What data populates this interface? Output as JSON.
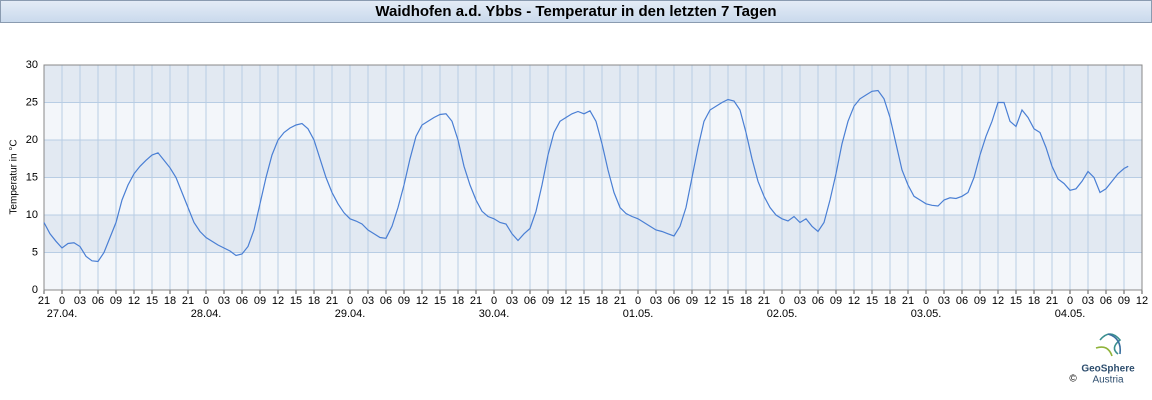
{
  "chart_data": {
    "type": "line",
    "title": "Waidhofen a.d. Ybbs - Temperatur in den letzten 7 Tagen",
    "y_label": "Temperatur in °C",
    "color": "#4a7fd4",
    "grid": true,
    "bands": true,
    "xlim": [
      -3,
      180
    ],
    "ylim": [
      0,
      30
    ],
    "yticks": [
      0,
      5,
      10,
      15,
      20,
      25,
      30
    ],
    "xticks": [
      {
        "value": -3,
        "label": "21"
      },
      0,
      {
        "value": 3,
        "label": "03"
      },
      {
        "value": 6,
        "label": "06"
      },
      {
        "value": 9,
        "label": "09"
      },
      12,
      15,
      18,
      21,
      {
        "value": 24,
        "label": "0"
      },
      {
        "value": 27,
        "label": "03"
      },
      {
        "value": 30,
        "label": "06"
      },
      {
        "value": 33,
        "label": "09"
      },
      {
        "value": 36,
        "label": "12"
      },
      {
        "value": 39,
        "label": "15"
      },
      {
        "value": 42,
        "label": "18"
      },
      {
        "value": 45,
        "label": "21"
      },
      {
        "value": 48,
        "label": "0"
      },
      {
        "value": 51,
        "label": "03"
      },
      {
        "value": 54,
        "label": "06"
      },
      {
        "value": 57,
        "label": "09"
      },
      {
        "value": 60,
        "label": "12"
      },
      {
        "value": 63,
        "label": "15"
      },
      {
        "value": 66,
        "label": "18"
      },
      {
        "value": 69,
        "label": "21"
      },
      {
        "value": 72,
        "label": "0"
      },
      {
        "value": 75,
        "label": "03"
      },
      {
        "value": 78,
        "label": "06"
      },
      {
        "value": 81,
        "label": "09"
      },
      {
        "value": 84,
        "label": "12"
      },
      {
        "value": 87,
        "label": "15"
      },
      {
        "value": 90,
        "label": "18"
      },
      {
        "value": 93,
        "label": "21"
      },
      {
        "value": 96,
        "label": "0"
      },
      {
        "value": 99,
        "label": "03"
      },
      {
        "value": 102,
        "label": "06"
      },
      {
        "value": 105,
        "label": "09"
      },
      {
        "value": 108,
        "label": "12"
      },
      {
        "value": 111,
        "label": "15"
      },
      {
        "value": 114,
        "label": "18"
      },
      {
        "value": 117,
        "label": "21"
      },
      {
        "value": 120,
        "label": "0"
      },
      {
        "value": 123,
        "label": "03"
      },
      {
        "value": 126,
        "label": "06"
      },
      {
        "value": 129,
        "label": "09"
      },
      {
        "value": 132,
        "label": "12"
      },
      {
        "value": 135,
        "label": "15"
      },
      {
        "value": 138,
        "label": "18"
      },
      {
        "value": 141,
        "label": "21"
      },
      {
        "value": 144,
        "label": "0"
      },
      {
        "value": 147,
        "label": "03"
      },
      {
        "value": 150,
        "label": "06"
      },
      {
        "value": 153,
        "label": "09"
      },
      {
        "value": 156,
        "label": "12"
      },
      {
        "value": 159,
        "label": "15"
      },
      {
        "value": 162,
        "label": "18"
      },
      {
        "value": 165,
        "label": "21"
      },
      {
        "value": 168,
        "label": "0"
      },
      {
        "value": 171,
        "label": "03"
      },
      {
        "value": 174,
        "label": "06"
      },
      {
        "value": 177,
        "label": "09"
      },
      {
        "value": 180,
        "label": "12"
      }
    ],
    "date_labels": [
      {
        "value": 0,
        "label": "27.04."
      },
      {
        "value": 24,
        "label": "28.04."
      },
      {
        "value": 48,
        "label": "29.04."
      },
      {
        "value": 72,
        "label": "30.04."
      },
      {
        "value": 96,
        "label": "01.05."
      },
      {
        "value": 120,
        "label": "02.05."
      },
      {
        "value": 144,
        "label": "03.05."
      },
      {
        "value": 168,
        "label": "04.05."
      }
    ],
    "x": [
      -3,
      -2,
      -1,
      0,
      1,
      2,
      3,
      4,
      5,
      6,
      7,
      8,
      9,
      10,
      11,
      12,
      13,
      14,
      15,
      16,
      17,
      18,
      19,
      20,
      21,
      22,
      23,
      24,
      26,
      28,
      29,
      30,
      31,
      32,
      33,
      34,
      35,
      36,
      37,
      38,
      39,
      40,
      41,
      42,
      43,
      44,
      45,
      46,
      47,
      48,
      49,
      50,
      51,
      52,
      53,
      54,
      55,
      56,
      57,
      58,
      59,
      60,
      61,
      62,
      63,
      64,
      65,
      66,
      67,
      68,
      69,
      70,
      71,
      72,
      73,
      74,
      75,
      76,
      77,
      78,
      79,
      80,
      81,
      82,
      83,
      84,
      85,
      86,
      87,
      88,
      89,
      90,
      91,
      92,
      93,
      94,
      95,
      96,
      97,
      98,
      99,
      100,
      101,
      102,
      103,
      104,
      105,
      106,
      107,
      108,
      109,
      110,
      111,
      112,
      113,
      114,
      115,
      116,
      117,
      118,
      119,
      120,
      121,
      122,
      123,
      124,
      125,
      126,
      127,
      128,
      129,
      130,
      131,
      132,
      133,
      134,
      135,
      136,
      137,
      138,
      139,
      140,
      141,
      142,
      143,
      144,
      145,
      146,
      147,
      148,
      149,
      150,
      151,
      152,
      153,
      154,
      155,
      156,
      157,
      158,
      159,
      160,
      161,
      162,
      163,
      164,
      165,
      166,
      167,
      168,
      169,
      170,
      171,
      172,
      173,
      174,
      175,
      176,
      177,
      177.7
    ],
    "values": [
      9,
      7.5,
      6.5,
      5.6,
      6.2,
      6.3,
      5.8,
      4.5,
      3.9,
      3.8,
      5,
      7,
      9,
      12,
      14,
      15.5,
      16.5,
      17.3,
      18,
      18.3,
      17.3,
      16.3,
      15,
      13,
      11,
      9,
      7.8,
      7,
      6,
      5.2,
      4.6,
      4.8,
      5.8,
      8,
      11.5,
      15,
      18,
      20,
      21,
      21.6,
      22,
      22.2,
      21.5,
      20,
      17.5,
      15,
      13,
      11.5,
      10.3,
      9.5,
      9.2,
      8.8,
      8,
      7.5,
      7,
      6.9,
      8.5,
      11,
      14,
      17.5,
      20.5,
      22,
      22.5,
      23,
      23.4,
      23.5,
      22.5,
      20,
      16.5,
      14,
      12,
      10.5,
      9.8,
      9.5,
      9,
      8.8,
      7.5,
      6.6,
      7.5,
      8.2,
      10.5,
      14,
      18,
      21,
      22.5,
      23,
      23.5,
      23.8,
      23.5,
      23.9,
      22.5,
      19.5,
      16,
      13,
      11,
      10.2,
      9.8,
      9.5,
      9,
      8.5,
      8,
      7.8,
      7.5,
      7.2,
      8.5,
      11,
      15,
      19,
      22.5,
      24,
      24.5,
      25,
      25.4,
      25.2,
      24,
      21,
      17.5,
      14.5,
      12.5,
      11,
      10,
      9.5,
      9.2,
      9.8,
      9,
      9.5,
      8.5,
      7.8,
      9,
      12,
      15.5,
      19.5,
      22.5,
      24.5,
      25.5,
      26,
      26.5,
      26.6,
      25.5,
      23,
      19.5,
      16,
      14,
      12.5,
      12,
      11.5,
      11.3,
      11.2,
      12,
      12.3,
      12.2,
      12.5,
      13,
      15,
      18,
      20.5,
      22.5,
      25,
      25,
      22.5,
      21.8,
      24,
      23,
      21.5,
      21,
      19,
      16.5,
      14.8,
      14.2,
      13.3,
      13.5,
      14.5,
      15.8,
      15,
      13,
      13.5,
      14.5,
      15.5,
      16.2,
      16.5
    ]
  },
  "footer": {
    "logo_name": "GeoSphere",
    "logo_sub": "Austria",
    "copyright": "©"
  }
}
